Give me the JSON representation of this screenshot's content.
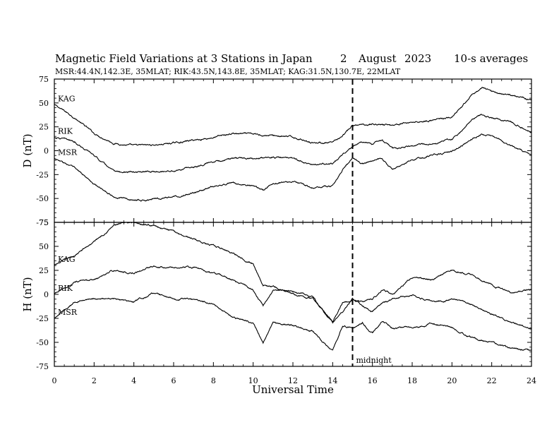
{
  "chart_data": {
    "type": "line",
    "title": "Magnetic Field Variations at 3 Stations in Japan",
    "date_day": "2",
    "date_month": "August",
    "date_year": "2023",
    "averaging": "10-s averages",
    "subtitle": "MSR:44.4N,142.3E, 35MLAT;  RIK:43.5N,143.8E, 35MLAT;  KAG:31.5N,130.7E, 22MLAT",
    "xlabel": "Universal Time",
    "xlim": [
      0,
      24
    ],
    "x_ticks": [
      "0",
      "2",
      "4",
      "6",
      "8",
      "10",
      "12",
      "14",
      "16",
      "18",
      "20",
      "22",
      "24"
    ],
    "midnight_marker": {
      "x": 15,
      "label": "midnight"
    },
    "panels": [
      {
        "ylabel": "D (nT)",
        "ylim": [
          -75,
          75
        ],
        "y_ticks": [
          "75",
          "50",
          "25",
          "0",
          "-25",
          "-50",
          "-75"
        ],
        "series": [
          {
            "name": "KAG",
            "x": [
              0,
              1,
              2,
              3,
              4,
              5,
              6,
              7,
              8,
              9,
              10,
              11,
              12,
              13,
              14,
              14.5,
              15,
              16,
              17,
              18,
              19,
              20,
              20.5,
              21,
              21.5,
              22,
              23,
              24
            ],
            "y": [
              48,
              35,
              18,
              8,
              5,
              6,
              8,
              11,
              14,
              18,
              17,
              16,
              14,
              9,
              8,
              15,
              26,
              28,
              27,
              30,
              32,
              35,
              45,
              58,
              66,
              62,
              58,
              54
            ]
          },
          {
            "name": "RIK",
            "x": [
              0,
              1,
              2,
              3,
              4,
              5,
              6,
              7,
              8,
              9,
              10,
              11,
              12,
              13,
              14,
              14.5,
              15,
              15.5,
              16,
              16.5,
              17,
              18,
              19,
              20,
              20.5,
              21,
              21.5,
              22,
              23,
              24
            ],
            "y": [
              14,
              10,
              -5,
              -22,
              -23,
              -22,
              -21,
              -17,
              -11,
              -8,
              -8,
              -7,
              -8,
              -15,
              -14,
              -5,
              5,
              9,
              7,
              11,
              2,
              5,
              8,
              12,
              20,
              33,
              38,
              34,
              30,
              20
            ]
          },
          {
            "name": "MSR",
            "x": [
              0,
              1,
              2,
              3,
              4,
              5,
              6,
              7,
              8,
              9,
              10,
              10.5,
              11,
              12,
              13,
              14,
              14.5,
              15,
              15.5,
              16,
              16.5,
              17,
              18,
              19,
              20,
              20.5,
              21,
              21.5,
              22,
              23,
              24
            ],
            "y": [
              -8,
              -18,
              -35,
              -48,
              -52,
              -51,
              -48,
              -44,
              -38,
              -34,
              -37,
              -42,
              -34,
              -32,
              -38,
              -37,
              -20,
              -8,
              -14,
              -10,
              -8,
              -20,
              -10,
              -5,
              -1,
              5,
              12,
              18,
              15,
              5,
              -5
            ]
          }
        ]
      },
      {
        "ylabel": "H (nT)",
        "ylim": [
          -75,
          75
        ],
        "y_ticks": [
          "75",
          "50",
          "25",
          "0",
          "-25",
          "-50",
          "-75"
        ],
        "series": [
          {
            "name": "KAG",
            "x": [
              0,
              1,
              2,
              3,
              4,
              5,
              6,
              7,
              8,
              9,
              10,
              10.5,
              11,
              12,
              13,
              14,
              14.5,
              15,
              15.5,
              16,
              16.5,
              17,
              18,
              19,
              20,
              21,
              22,
              23,
              24
            ],
            "y": [
              30,
              40,
              55,
              72,
              75,
              72,
              65,
              58,
              50,
              43,
              32,
              10,
              8,
              0,
              -5,
              -28,
              -8,
              -5,
              -8,
              -5,
              5,
              0,
              18,
              15,
              25,
              20,
              10,
              2,
              5
            ]
          },
          {
            "name": "RIK",
            "x": [
              0,
              1,
              2,
              3,
              4,
              5,
              6,
              7,
              8,
              9,
              10,
              10.5,
              11,
              12,
              13,
              14,
              14.5,
              15,
              15.5,
              16,
              16.5,
              17,
              18,
              19,
              20,
              21,
              22,
              23,
              24
            ],
            "y": [
              0,
              12,
              15,
              25,
              22,
              30,
              28,
              28,
              22,
              15,
              5,
              -12,
              5,
              3,
              -2,
              -30,
              -18,
              -5,
              -12,
              -18,
              -10,
              -5,
              0,
              -8,
              -5,
              -10,
              -20,
              -30,
              -35
            ]
          },
          {
            "name": "MSR",
            "x": [
              0,
              1,
              2,
              3,
              4,
              5,
              6,
              7,
              8,
              9,
              10,
              10.5,
              11,
              12,
              13,
              14,
              14.5,
              15,
              15.5,
              16,
              16.5,
              17,
              18,
              19,
              20,
              21,
              22,
              23,
              24
            ],
            "y": [
              -25,
              -8,
              -5,
              -5,
              -8,
              2,
              -5,
              -5,
              -10,
              -25,
              -30,
              -50,
              -30,
              -32,
              -38,
              -60,
              -32,
              -35,
              -30,
              -40,
              -28,
              -35,
              -35,
              -30,
              -35,
              -45,
              -50,
              -57,
              -58
            ]
          }
        ]
      }
    ]
  }
}
